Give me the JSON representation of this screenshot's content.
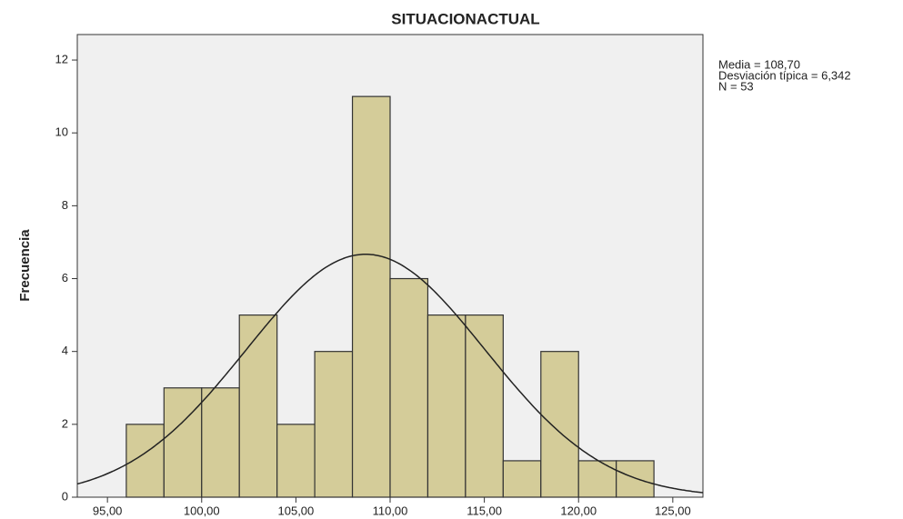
{
  "chart_data": {
    "type": "histogram",
    "title": "SITUACIONACTUAL",
    "y_label": "Frecuencia",
    "bins": [
      96,
      98,
      100,
      102,
      104,
      106,
      108,
      110,
      112,
      114,
      116,
      118,
      120,
      122,
      124
    ],
    "values": [
      2,
      3,
      3,
      5,
      2,
      4,
      11,
      6,
      5,
      5,
      1,
      4,
      1,
      1
    ],
    "color": "#d4cc99",
    "xlim": [
      93.4,
      126.6
    ],
    "xticks": [
      {
        "value": 95,
        "label": "95,00"
      },
      {
        "value": 100,
        "label": "100,00"
      },
      {
        "value": 105,
        "label": "105,00"
      },
      {
        "value": 110,
        "label": "110,00"
      },
      {
        "value": 115,
        "label": "115,00"
      },
      {
        "value": 120,
        "label": "120,00"
      },
      {
        "value": 125,
        "label": "125,00"
      }
    ],
    "ylim": [
      0,
      12.7
    ],
    "yticks": [
      0,
      2,
      4,
      6,
      8,
      10,
      12
    ],
    "normal_curve": {
      "mean": 108.7,
      "sd": 6.342,
      "n": 53
    },
    "annotations": [
      "Media = 108,70",
      "Desviación típica = 6,342",
      "N = 53"
    ]
  }
}
